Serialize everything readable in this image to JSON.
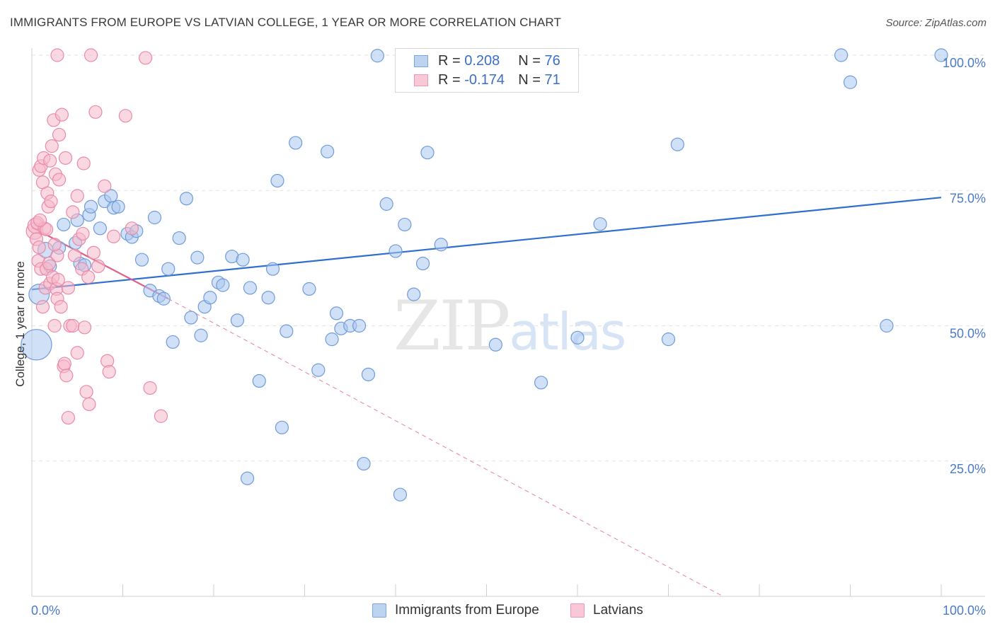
{
  "title": "IMMIGRANTS FROM EUROPE VS LATVIAN COLLEGE, 1 YEAR OR MORE CORRELATION CHART",
  "source": "Source: ZipAtlas.com",
  "watermark": {
    "zip": "ZIP",
    "atlas": "atlas"
  },
  "legend": {
    "rows": [
      {
        "r_label": "R =",
        "r_value": "0.208",
        "n_label": "N =",
        "n_value": "76"
      },
      {
        "r_label": "R =",
        "r_value": "-0.174",
        "n_label": "N =",
        "n_value": "71"
      }
    ]
  },
  "colors": {
    "blue_fill": "#a9c6ef",
    "blue_stroke": "#6f9bd9",
    "blue_line": "#2f6fcf",
    "pink_fill": "#f6b8cb",
    "pink_stroke": "#ea8aa8",
    "pink_line": "#e0608c",
    "grid": "#e2e2e2",
    "tick_text": "#4a7ac8"
  },
  "chart_data": {
    "type": "scatter",
    "title": "IMMIGRANTS FROM EUROPE VS LATVIAN COLLEGE, 1 YEAR OR MORE CORRELATION CHART",
    "xlabel": "",
    "ylabel": "College, 1 year or more",
    "xlim": [
      0,
      100
    ],
    "ylim": [
      0,
      100
    ],
    "x_ticks": [
      "0.0%",
      "100.0%"
    ],
    "y_ticks": [
      {
        "value": 25,
        "label": "25.0%"
      },
      {
        "value": 50,
        "label": "50.0%"
      },
      {
        "value": 75,
        "label": "75.0%"
      },
      {
        "value": 100,
        "label": "100.0%"
      }
    ],
    "grid": true,
    "legend_position": "top-center",
    "series": [
      {
        "name": "Immigrants from Europe",
        "color": "#a9c6ef",
        "trend": {
          "x": [
            0,
            100
          ],
          "y": [
            56.7,
            73.7
          ],
          "style": "solid"
        },
        "points": [
          [
            0.5,
            46.5,
            2.4
          ],
          [
            0.8,
            55.8,
            1.6
          ],
          [
            1.5,
            64.0,
            1.2
          ],
          [
            2.0,
            61.0,
            1.0
          ],
          [
            3.5,
            68.7,
            1.0
          ],
          [
            3.0,
            64.4,
            1.0
          ],
          [
            4.8,
            65.3,
            1.0
          ],
          [
            5.0,
            69.5,
            1.0
          ],
          [
            6.3,
            70.5,
            1.0
          ],
          [
            5.3,
            61.5,
            1.0
          ],
          [
            5.8,
            61.2,
            1.0
          ],
          [
            7.5,
            68.0,
            1.0
          ],
          [
            6.5,
            72.0,
            1.0
          ],
          [
            8.0,
            73.0,
            1.0
          ],
          [
            8.7,
            74.0,
            1.0
          ],
          [
            9.0,
            71.8,
            1.0
          ],
          [
            9.5,
            72.0,
            1.0
          ],
          [
            10.5,
            67.0,
            1.0
          ],
          [
            11.0,
            66.4,
            1.0
          ],
          [
            11.5,
            67.5,
            1.0
          ],
          [
            12.1,
            62.2,
            1.0
          ],
          [
            13.0,
            56.5,
            1.0
          ],
          [
            13.5,
            70.0,
            1.0
          ],
          [
            14.0,
            55.5,
            1.0
          ],
          [
            14.5,
            55.0,
            1.0
          ],
          [
            15.0,
            60.5,
            1.0
          ],
          [
            15.5,
            47.0,
            1.0
          ],
          [
            16.2,
            66.2,
            1.0
          ],
          [
            17.0,
            73.5,
            1.0
          ],
          [
            17.5,
            51.5,
            1.0
          ],
          [
            18.2,
            62.6,
            1.0
          ],
          [
            18.6,
            48.2,
            1.0
          ],
          [
            19.0,
            53.5,
            1.0
          ],
          [
            19.6,
            55.2,
            1.0
          ],
          [
            20.5,
            58.0,
            1.0
          ],
          [
            21.0,
            57.5,
            1.0
          ],
          [
            22.0,
            62.8,
            1.0
          ],
          [
            22.6,
            51.0,
            1.0
          ],
          [
            23.2,
            62.2,
            1.0
          ],
          [
            23.7,
            21.8,
            1.0
          ],
          [
            24.0,
            57.0,
            1.0
          ],
          [
            25.0,
            39.8,
            1.0
          ],
          [
            26.0,
            55.2,
            1.0
          ],
          [
            26.5,
            60.5,
            1.0
          ],
          [
            27.0,
            76.8,
            1.0
          ],
          [
            27.5,
            31.2,
            1.0
          ],
          [
            28.0,
            49.0,
            1.0
          ],
          [
            29.0,
            83.8,
            1.0
          ],
          [
            30.5,
            56.8,
            1.0
          ],
          [
            31.5,
            41.8,
            1.0
          ],
          [
            32.5,
            82.2,
            1.0
          ],
          [
            33.0,
            47.5,
            1.0
          ],
          [
            33.5,
            52.3,
            1.0
          ],
          [
            34.0,
            49.5,
            1.0
          ],
          [
            35.0,
            50.0,
            1.0
          ],
          [
            36.0,
            50.0,
            1.0
          ],
          [
            36.5,
            24.5,
            1.0
          ],
          [
            37.0,
            41.0,
            1.0
          ],
          [
            38.0,
            99.9,
            1.0
          ],
          [
            39.0,
            72.5,
            1.0
          ],
          [
            40.0,
            63.8,
            1.0
          ],
          [
            40.5,
            18.8,
            1.0
          ],
          [
            41.0,
            68.7,
            1.0
          ],
          [
            42.0,
            55.8,
            1.0
          ],
          [
            43.0,
            61.5,
            1.0
          ],
          [
            43.5,
            82.0,
            1.0
          ],
          [
            45.0,
            65.0,
            1.0
          ],
          [
            51.0,
            46.5,
            1.0
          ],
          [
            56.0,
            39.5,
            1.0
          ],
          [
            60.0,
            47.8,
            1.0
          ],
          [
            62.5,
            68.8,
            1.0
          ],
          [
            70.0,
            47.5,
            1.0
          ],
          [
            71.0,
            83.5,
            1.0
          ],
          [
            90.0,
            95.0,
            1.0
          ],
          [
            94.0,
            50.0,
            1.0
          ],
          [
            89.0,
            100.0,
            1.0
          ],
          [
            100.0,
            100.0,
            1.0
          ]
        ]
      },
      {
        "name": "Latvians",
        "color": "#f6b8cb",
        "trend": {
          "x": [
            0,
            15
          ],
          "y": [
            68.2,
            55.0
          ],
          "style": "solid",
          "extension": {
            "x": [
              15,
              76
            ],
            "y": [
              55.0,
              0
            ],
            "style": "dashed"
          }
        },
        "points": [
          [
            0.3,
            67.5,
            1.3
          ],
          [
            0.4,
            68.5,
            1.2
          ],
          [
            0.5,
            66.0,
            1.0
          ],
          [
            0.6,
            69.0,
            1.0
          ],
          [
            0.7,
            62.0,
            1.0
          ],
          [
            0.8,
            64.5,
            1.0
          ],
          [
            0.8,
            78.8,
            1.0
          ],
          [
            1.0,
            79.5,
            1.0
          ],
          [
            1.0,
            60.5,
            1.0
          ],
          [
            1.2,
            53.5,
            1.0
          ],
          [
            1.2,
            76.5,
            1.0
          ],
          [
            1.3,
            81.0,
            1.0
          ],
          [
            1.4,
            68.0,
            1.0
          ],
          [
            1.5,
            57.0,
            1.0
          ],
          [
            1.6,
            60.5,
            1.0
          ],
          [
            1.7,
            74.5,
            1.0
          ],
          [
            1.8,
            72.0,
            1.0
          ],
          [
            1.9,
            61.5,
            1.0
          ],
          [
            2.0,
            57.8,
            1.0
          ],
          [
            2.0,
            80.5,
            1.0
          ],
          [
            2.1,
            73.0,
            1.0
          ],
          [
            2.2,
            83.2,
            1.0
          ],
          [
            2.3,
            59.0,
            1.0
          ],
          [
            2.4,
            88.0,
            1.0
          ],
          [
            2.5,
            50.0,
            1.0
          ],
          [
            2.6,
            78.0,
            1.0
          ],
          [
            2.7,
            56.8,
            1.0
          ],
          [
            2.8,
            63.0,
            1.0
          ],
          [
            2.8,
            55.0,
            1.0
          ],
          [
            3.0,
            85.3,
            1.0
          ],
          [
            3.0,
            77.0,
            1.0
          ],
          [
            3.2,
            53.5,
            1.0
          ],
          [
            3.3,
            89.0,
            1.0
          ],
          [
            3.5,
            42.5,
            1.0
          ],
          [
            3.6,
            43.0,
            1.0
          ],
          [
            3.7,
            81.0,
            1.0
          ],
          [
            3.8,
            40.8,
            1.0
          ],
          [
            4.0,
            57.0,
            1.0
          ],
          [
            4.0,
            33.0,
            1.0
          ],
          [
            4.2,
            50.0,
            1.0
          ],
          [
            4.5,
            50.0,
            1.0
          ],
          [
            4.5,
            71.0,
            1.0
          ],
          [
            4.7,
            63.0,
            1.0
          ],
          [
            5.0,
            74.0,
            1.0
          ],
          [
            5.0,
            45.0,
            1.0
          ],
          [
            5.2,
            66.0,
            1.0
          ],
          [
            5.5,
            60.5,
            1.0
          ],
          [
            5.6,
            67.0,
            1.0
          ],
          [
            5.7,
            80.0,
            1.0
          ],
          [
            5.8,
            49.7,
            1.0
          ],
          [
            6.0,
            37.8,
            1.0
          ],
          [
            6.2,
            59.0,
            1.0
          ],
          [
            6.3,
            35.5,
            1.0
          ],
          [
            6.5,
            100.0,
            1.0
          ],
          [
            6.8,
            63.5,
            1.0
          ],
          [
            7.0,
            89.5,
            1.0
          ],
          [
            7.3,
            61.0,
            1.0
          ],
          [
            8.0,
            75.8,
            1.0
          ],
          [
            8.3,
            43.5,
            1.0
          ],
          [
            8.5,
            41.5,
            1.0
          ],
          [
            9.0,
            66.5,
            1.0
          ],
          [
            10.3,
            88.8,
            1.0
          ],
          [
            11.0,
            68.0,
            1.0
          ],
          [
            12.5,
            99.5,
            1.0
          ],
          [
            13.0,
            38.5,
            1.0
          ],
          [
            14.2,
            33.3,
            1.0
          ],
          [
            2.8,
            100.0,
            1.0
          ],
          [
            2.5,
            65.0,
            1.0
          ],
          [
            1.6,
            67.8,
            1.0
          ],
          [
            0.9,
            69.5,
            1.0
          ],
          [
            2.9,
            58.5,
            1.0
          ]
        ]
      }
    ]
  },
  "bottom_legend": [
    {
      "label": "Immigrants from Europe"
    },
    {
      "label": "Latvians"
    }
  ]
}
